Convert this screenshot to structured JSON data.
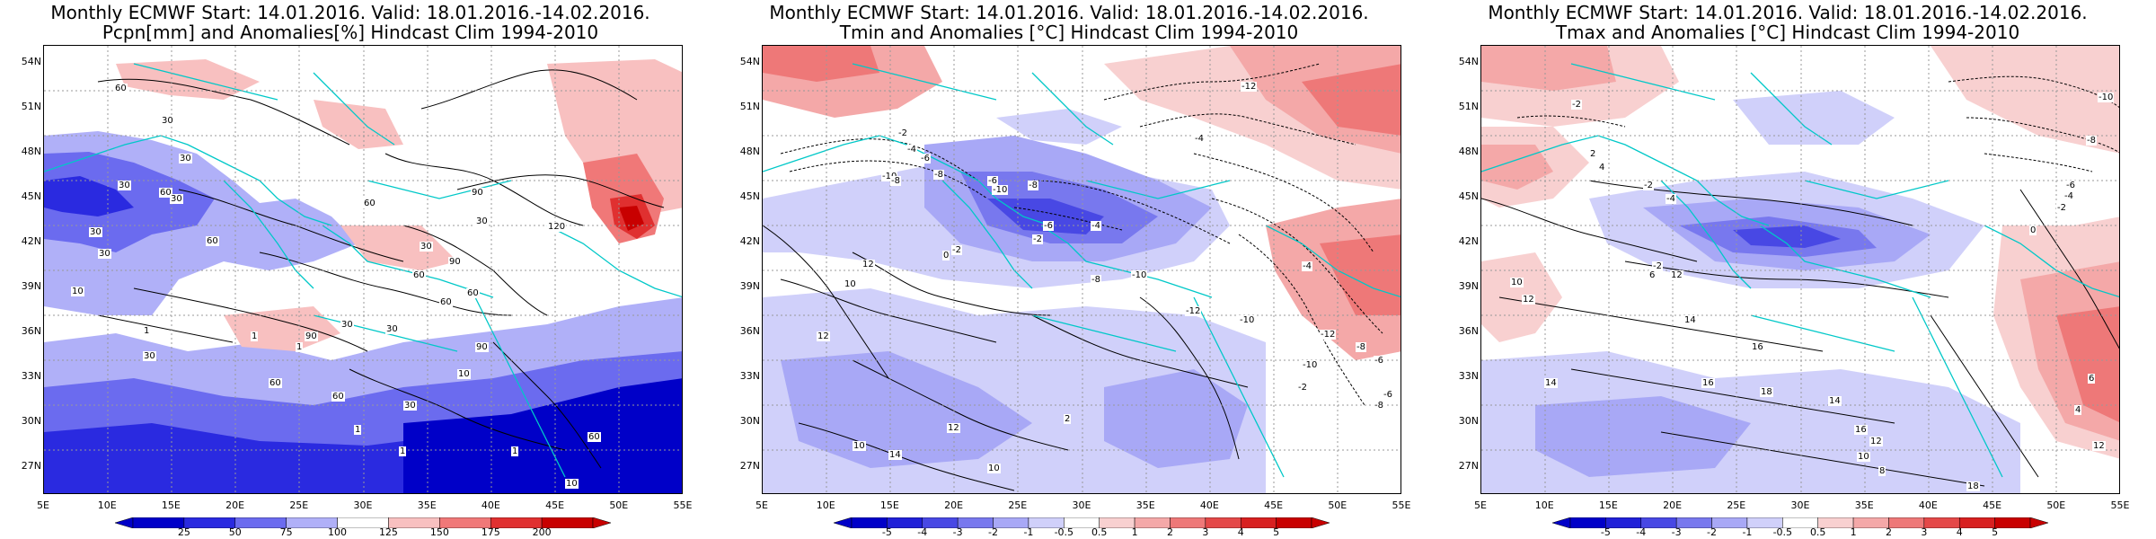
{
  "panels": [
    {
      "title_line1": "Monthly ECMWF Start: 14.01.2016. Valid: 18.01.2016.-14.02.2016.",
      "title_line2": "Pcpn[mm] and Anomalies[%] Hindcast Clim 1994-2010",
      "colorbar_labels": [
        "25",
        "50",
        "75",
        "100",
        "125",
        "150",
        "175",
        "200"
      ],
      "colorbar_colors": [
        "#0000c8",
        "#2a2ae0",
        "#6b6bef",
        "#b0b0f8",
        "#ffffff",
        "#f8c0c0",
        "#f07878",
        "#e03030",
        "#c80000"
      ],
      "contour_labels": [
        "60",
        "30",
        "30",
        "30",
        "60",
        "30",
        "30",
        "30",
        "60",
        "30",
        "90",
        "60",
        "30",
        "120",
        "30",
        "90",
        "60",
        "60",
        "60",
        "30",
        "30",
        "90",
        "60",
        "90",
        "10",
        "10",
        "1",
        "1",
        "1",
        "1",
        "1",
        "1",
        "10",
        "60",
        "60",
        "30"
      ]
    },
    {
      "title_line1": "Monthly ECMWF Start: 14.01.2016. Valid: 18.01.2016.-14.02.2016.",
      "title_line2": "Tmin and Anomalies [°C] Hindcast Clim 1994-2010",
      "colorbar_labels": [
        "-5",
        "-4",
        "-3",
        "-2",
        "-1",
        "-0.5",
        "0.5",
        "1",
        "2",
        "3",
        "4",
        "5"
      ],
      "colorbar_colors": [
        "#0000c8",
        "#2020d8",
        "#4848e4",
        "#7878ee",
        "#a8a8f6",
        "#d0d0fa",
        "#ffffff",
        "#f8d0d0",
        "#f4a8a8",
        "#ee7878",
        "#e44848",
        "#d82020",
        "#c80000"
      ],
      "contour_labels": [
        "-12",
        "-2",
        "-4",
        "-4",
        "-6",
        "-8",
        "-10",
        "-8",
        "-6",
        "-10",
        "-8",
        "-4",
        "-6",
        "-2",
        "-8",
        "-10",
        "-12",
        "-2",
        "0",
        "-10",
        "12",
        "10",
        "12",
        "10",
        "2",
        "14",
        "12",
        "10",
        "-2",
        "-4",
        "-8",
        "-10",
        "-12",
        "-6",
        "-6",
        "-8"
      ]
    },
    {
      "title_line1": "Monthly ECMWF Start: 14.01.2016. Valid: 18.01.2016.-14.02.2016.",
      "title_line2": "Tmax and Anomalies [°C] Hindcast Clim 1994-2010",
      "colorbar_labels": [
        "-5",
        "-4",
        "-3",
        "-2",
        "-1",
        "-0.5",
        "0.5",
        "1",
        "2",
        "3",
        "4",
        "5"
      ],
      "colorbar_colors": [
        "#0000c8",
        "#2020d8",
        "#4848e4",
        "#7878ee",
        "#a8a8f6",
        "#d0d0fa",
        "#ffffff",
        "#f8d0d0",
        "#f4a8a8",
        "#ee7878",
        "#e44848",
        "#d82020",
        "#c80000"
      ],
      "contour_labels": [
        "-2",
        "-10",
        "-8",
        "-6",
        "-4",
        "-2",
        "0",
        "2",
        "4",
        "6",
        "-2",
        "10",
        "12",
        "14",
        "16",
        "14",
        "16",
        "18",
        "12",
        "10",
        "8",
        "6",
        "4",
        "-2",
        "-4",
        "12",
        "14",
        "16",
        "18",
        "12"
      ]
    }
  ],
  "lat_labels": [
    "54N",
    "51N",
    "48N",
    "45N",
    "42N",
    "39N",
    "36N",
    "33N",
    "30N",
    "27N"
  ],
  "lon_labels": [
    "5E",
    "10E",
    "15E",
    "20E",
    "25E",
    "30E",
    "35E",
    "40E",
    "45E",
    "50E",
    "55E"
  ]
}
